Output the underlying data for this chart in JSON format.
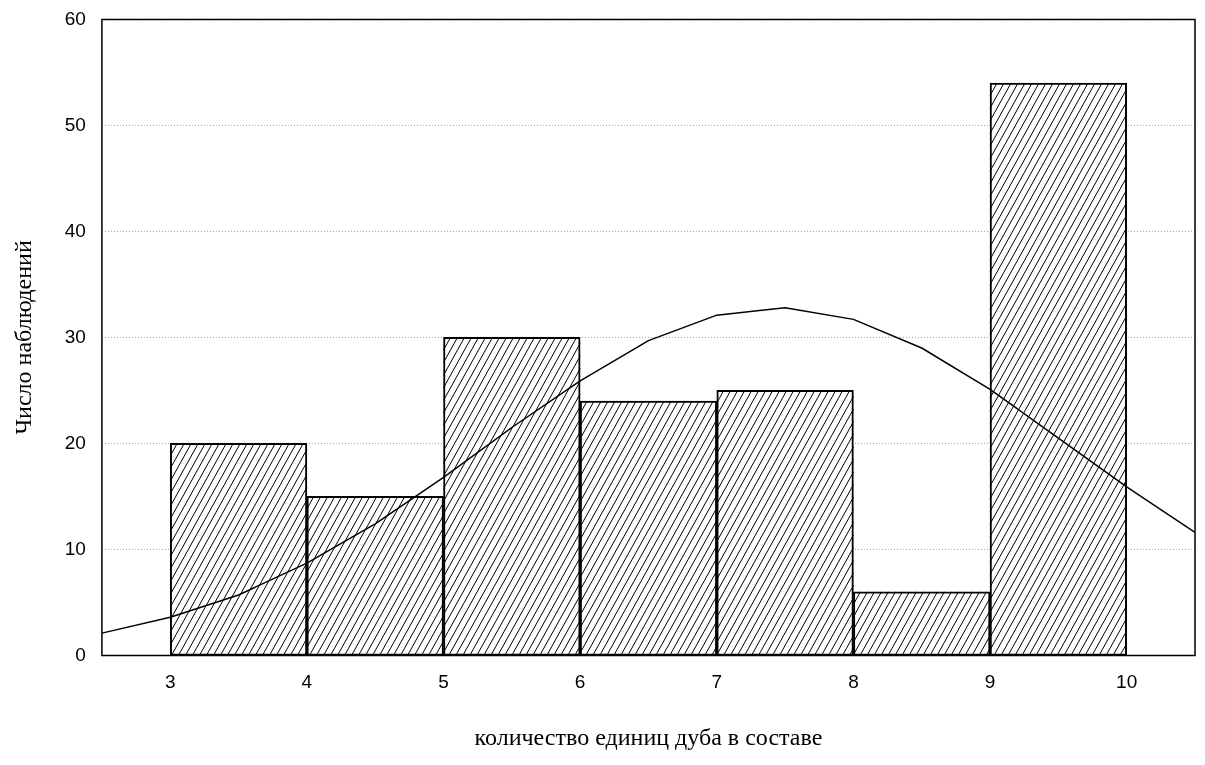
{
  "chart_data": {
    "type": "bar",
    "xlabel": "количество единиц дуба в составе",
    "ylabel": "Число наблюдений",
    "x": [
      3.5,
      4.5,
      5.5,
      6.5,
      7.5,
      8.5,
      9.5
    ],
    "series": [
      {
        "color": "#ffffff",
        "values": [
          20,
          15,
          30,
          24,
          25,
          6,
          54
        ]
      },
      {
        "type": "line",
        "color": "#000000",
        "marker": "none",
        "x": [
          2.5,
          3,
          3.5,
          4,
          4.5,
          5,
          5.5,
          6,
          6.5,
          7,
          7.5,
          8,
          8.5,
          9,
          9.5,
          10,
          10.5
        ],
        "values": [
          2.1,
          3.6,
          5.7,
          8.7,
          12.4,
          16.8,
          21.5,
          25.9,
          29.7,
          32.1,
          32.8,
          31.7,
          29.0,
          25.1,
          20.5,
          15.9,
          11.6
        ]
      }
    ],
    "xlim": [
      2.5,
      10.5
    ],
    "xticks": [
      3,
      4,
      5,
      6,
      7,
      8,
      9,
      10
    ],
    "ylim": [
      0,
      60
    ],
    "yticks": [
      0,
      10,
      20,
      30,
      40,
      50,
      60
    ],
    "grid": "y",
    "legend": false
  }
}
